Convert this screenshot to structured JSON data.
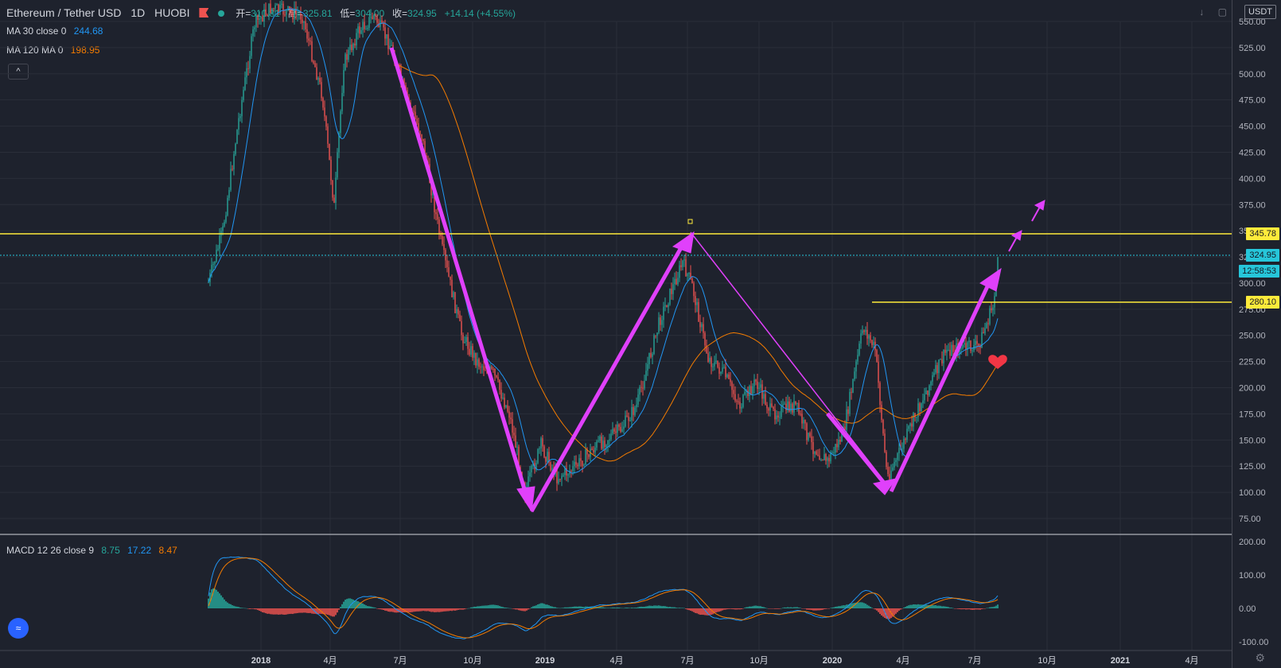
{
  "header": {
    "symbol": "Ethereum / Tether USD",
    "interval": "1D",
    "exchange": "HUOBI",
    "open_label": "开=",
    "open": "310.81",
    "high_label": "高=",
    "high": "325.81",
    "low_label": "低=",
    "low": "304.00",
    "close_label": "收=",
    "close": "324.95",
    "change": "+14.14 (+4.55%)"
  },
  "indicators": {
    "ma30_label": "MA 30 close 0",
    "ma30_value": "244.68",
    "ma120_label": "MA 120 MA 0",
    "ma120_value": "198.95",
    "macd_label": "MACD 12 26 close 9",
    "macd_v1": "8.75",
    "macd_v2": "17.22",
    "macd_v3": "8.47",
    "collapse": "^"
  },
  "currency": "USDT",
  "price_labels": {
    "resistance_high": "345.78",
    "current": "324.95",
    "countdown": "12:58:53",
    "resistance_low": "280.10"
  },
  "colors": {
    "background": "#1e222d",
    "up": "#26a69a",
    "down": "#ef5350",
    "ma30": "#2196f3",
    "ma120": "#f57c00",
    "drawing": "#e040fb",
    "level": "#ffeb3b",
    "current": "#26c6da"
  },
  "chart_data": [
    {
      "type": "candlestick",
      "yaxis_ticks": [
        "550.00",
        "525.00",
        "500.00",
        "475.00",
        "450.00",
        "425.00",
        "400.00",
        "375.00",
        "350.00",
        "325.00",
        "300.00",
        "275.00",
        "250.00",
        "225.00",
        "200.00",
        "175.00",
        "150.00",
        "125.00",
        "100.00",
        "75.00"
      ],
      "xaxis_ticks": [
        "2018",
        "4月",
        "7月",
        "10月",
        "2019",
        "4月",
        "7月",
        "10月",
        "2020",
        "4月",
        "7月",
        "10月",
        "2021",
        "4月"
      ],
      "horizontal_levels": [
        345.78,
        280.1
      ],
      "series": [
        {
          "name": "MA 30 close 0"
        },
        {
          "name": "MA 120 MA 0"
        }
      ]
    },
    {
      "type": "macd",
      "yaxis_ticks": [
        "200.00",
        "100.00",
        "0.00",
        "-100.00"
      ]
    }
  ]
}
